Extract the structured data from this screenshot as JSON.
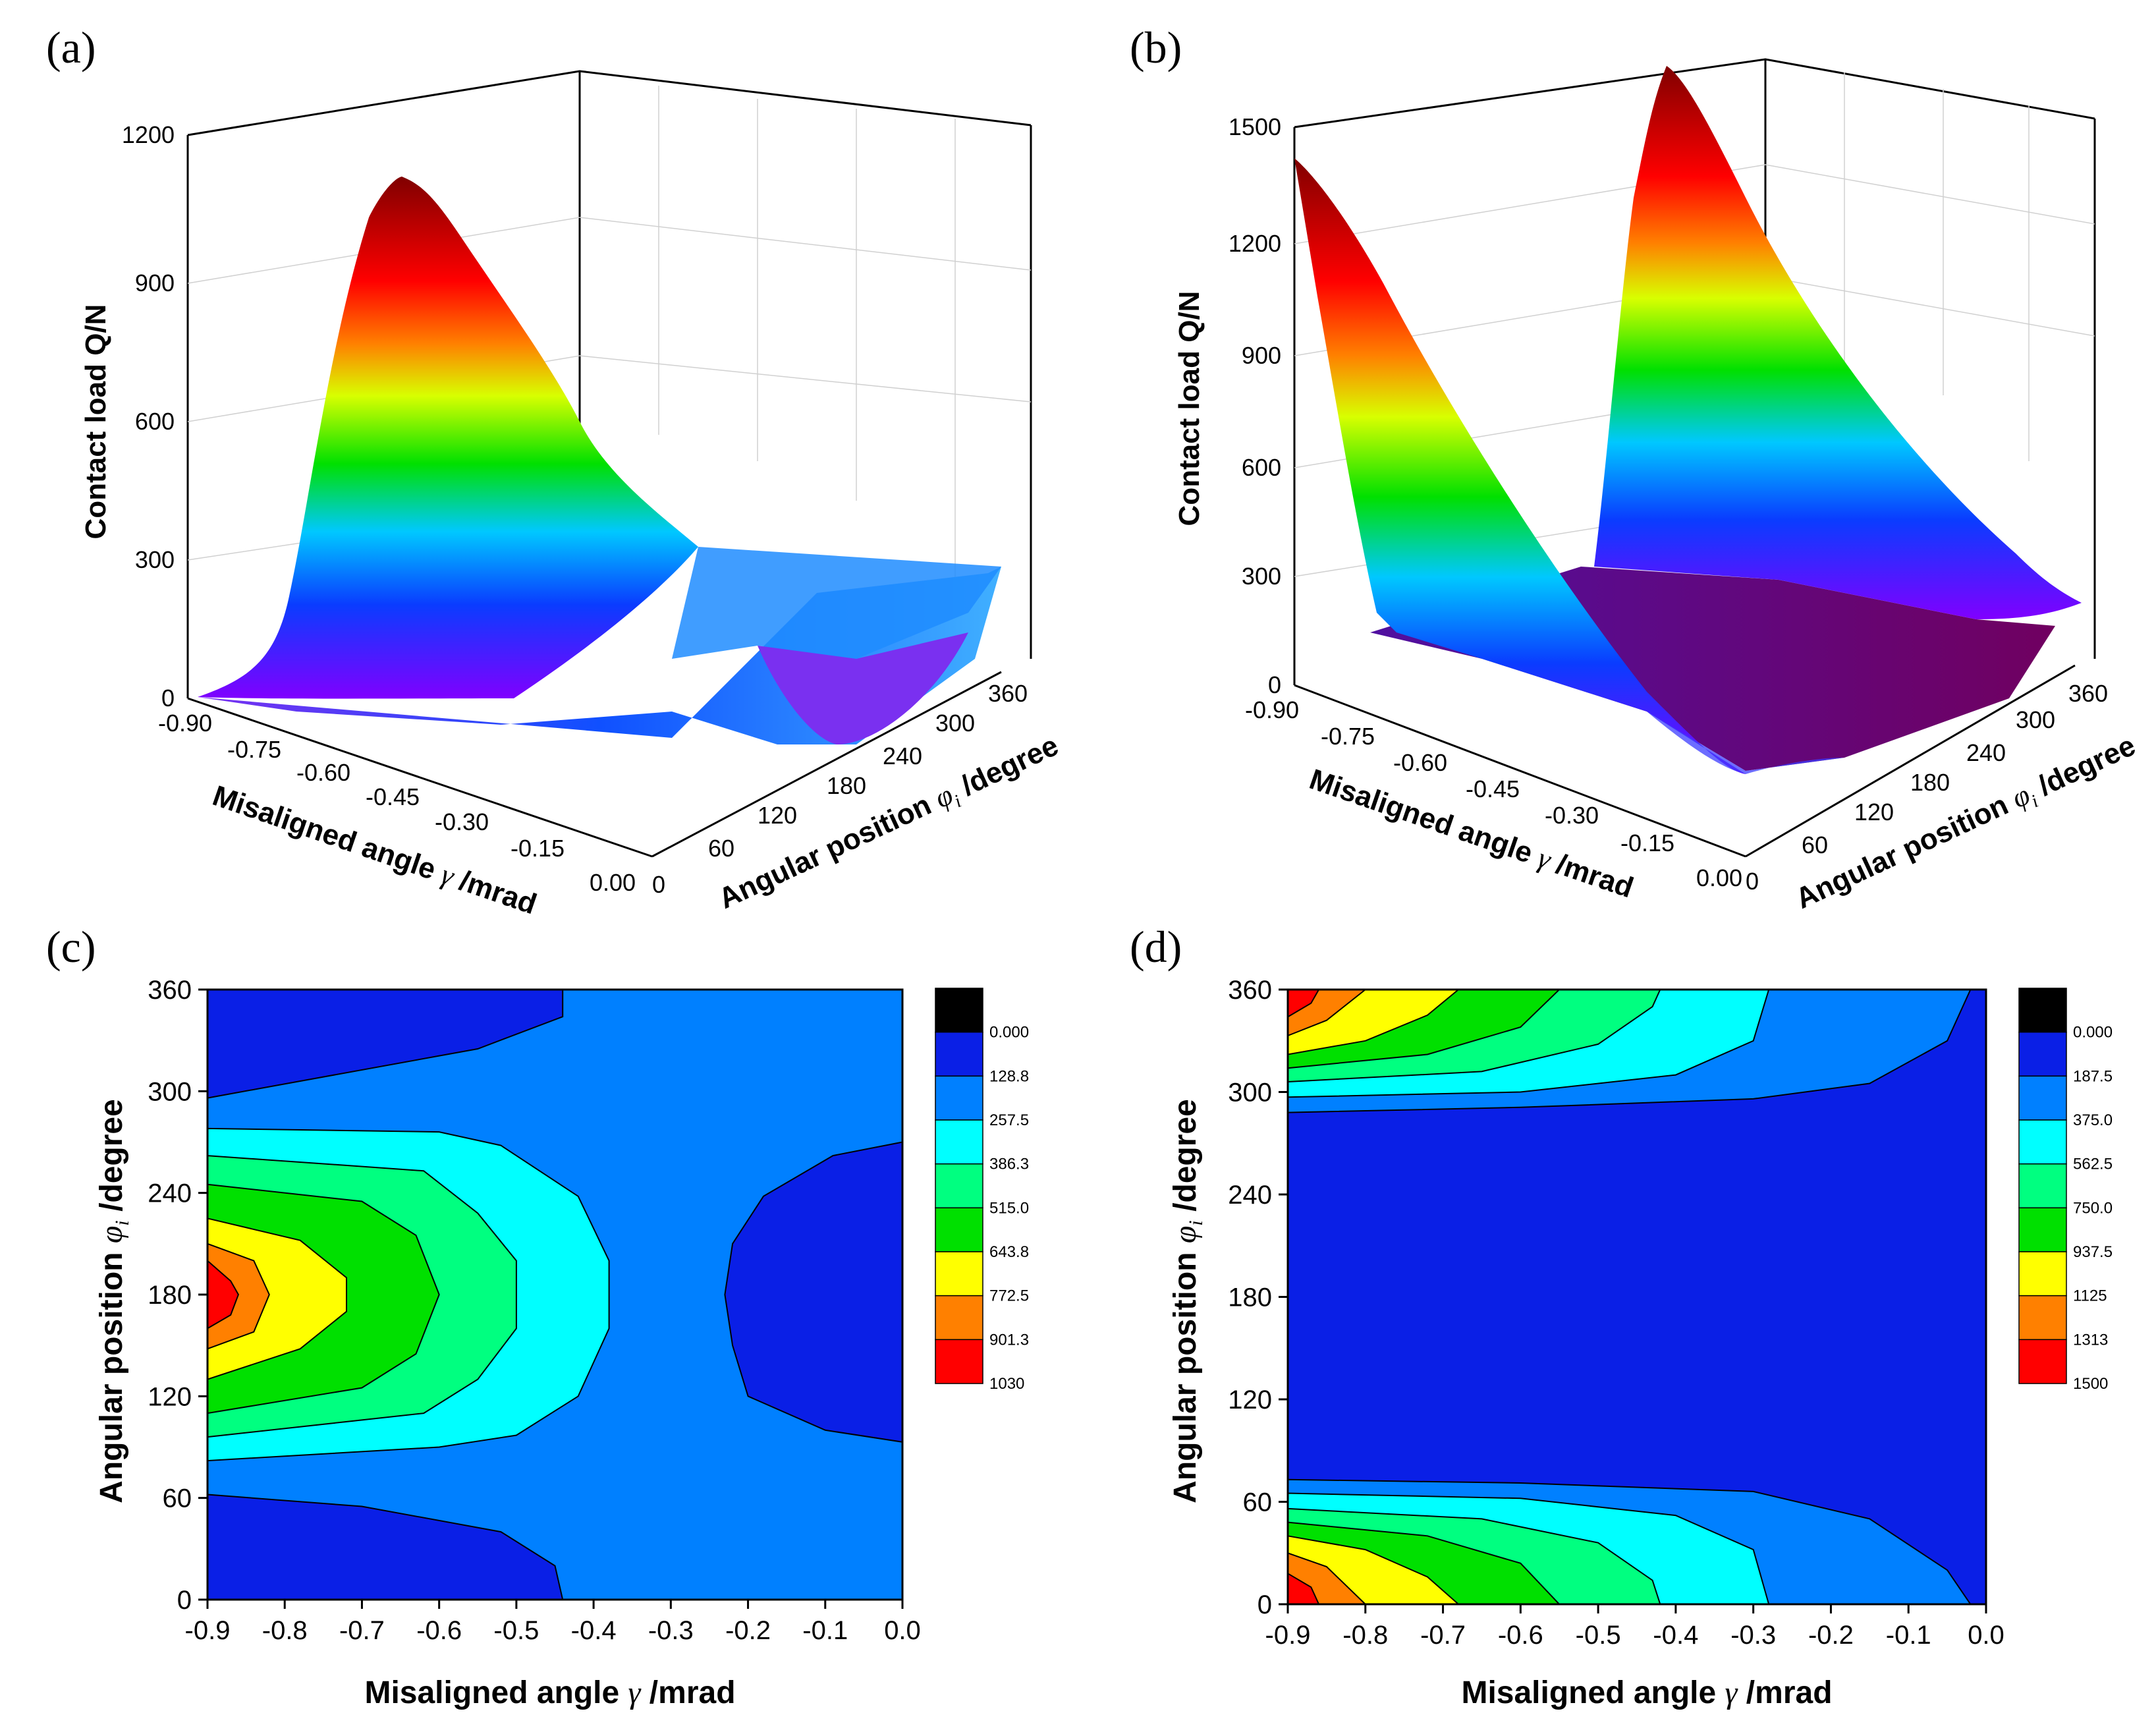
{
  "chart_data": [
    {
      "id": "a",
      "panel_label": "(a)",
      "type": "surface",
      "zlabel": "Contact load Q/N",
      "xlabel_prefix": "Misaligned angle ",
      "xlabel_sym": "γ",
      "xlabel_suffix": " /mrad",
      "ylabel_prefix": "Angular position ",
      "ylabel_sym": "φ",
      "ylabel_sub": "i",
      "ylabel_suffix": " /degree",
      "x_ticks": [
        "-0.90",
        "-0.75",
        "-0.60",
        "-0.45",
        "-0.30",
        "-0.15",
        "0.00"
      ],
      "y_ticks": [
        "0",
        "60",
        "120",
        "180",
        "240",
        "300",
        "360"
      ],
      "z_ticks": [
        "0",
        "300",
        "600",
        "900",
        "1200"
      ],
      "zlim": [
        0,
        1200
      ],
      "description": "load peaks near 1100 N at gamma = -0.90 mrad, phi = 180 degree and decreases toward gamma = 0"
    },
    {
      "id": "b",
      "panel_label": "(b)",
      "type": "surface",
      "zlabel": "Contact load Q/N",
      "xlabel_prefix": "Misaligned angle ",
      "xlabel_sym": "γ",
      "xlabel_suffix": " /mrad",
      "ylabel_prefix": "Angular position ",
      "ylabel_sym": "φ",
      "ylabel_sub": "i",
      "ylabel_suffix": " /degree",
      "x_ticks": [
        "-0.90",
        "-0.75",
        "-0.60",
        "-0.45",
        "-0.30",
        "-0.15",
        "0.00"
      ],
      "y_ticks": [
        "0",
        "60",
        "120",
        "180",
        "240",
        "300",
        "360"
      ],
      "z_ticks": [
        "0",
        "300",
        "600",
        "900",
        "1200",
        "1500"
      ],
      "zlim": [
        0,
        1500
      ],
      "description": "load peaks near 1500 N at gamma = -0.90 mrad for phi = 0 and phi = 360 degree"
    },
    {
      "id": "c",
      "panel_label": "(c)",
      "type": "contour",
      "xlabel_prefix": "Misaligned angle ",
      "xlabel_sym": "γ",
      "xlabel_suffix": " /mrad",
      "ylabel_prefix": "Angular position ",
      "ylabel_sym": "φ",
      "ylabel_sub": "i",
      "ylabel_suffix": " /degree",
      "xlim": [
        -0.9,
        0.0
      ],
      "ylim": [
        0,
        360
      ],
      "x_ticks": [
        "-0.9",
        "-0.8",
        "-0.7",
        "-0.6",
        "-0.5",
        "-0.4",
        "-0.3",
        "-0.2",
        "-0.1",
        "0.0"
      ],
      "y_ticks": [
        "0",
        "60",
        "120",
        "180",
        "240",
        "300",
        "360"
      ],
      "x_tick_values": [
        -0.9,
        -0.8,
        -0.7,
        -0.6,
        -0.5,
        -0.4,
        -0.3,
        -0.2,
        -0.1,
        0.0
      ],
      "y_tick_values": [
        0,
        60,
        120,
        180,
        240,
        300,
        360
      ],
      "levels": [
        "0.000",
        "128.8",
        "257.5",
        "386.3",
        "515.0",
        "643.8",
        "772.5",
        "901.3",
        "1030"
      ],
      "level_colors": [
        "#000000",
        "#0a1fe6",
        "#0080ff",
        "#00ffff",
        "#00ff80",
        "#00e000",
        "#ffff00",
        "#ff8000",
        "#ff0000"
      ],
      "base_color": "#0080ff",
      "regions": [
        {
          "level": 1,
          "color": "#0a1fe6",
          "points": [
            [
              -0.9,
              296
            ],
            [
              -0.55,
              325
            ],
            [
              -0.44,
              344
            ],
            [
              -0.44,
              360
            ],
            [
              -0.9,
              360
            ]
          ]
        },
        {
          "level": 1,
          "color": "#0a1fe6",
          "points": [
            [
              -0.9,
              0
            ],
            [
              -0.9,
              62
            ],
            [
              -0.7,
              55
            ],
            [
              -0.52,
              40
            ],
            [
              -0.45,
              20
            ],
            [
              -0.44,
              0
            ]
          ]
        },
        {
          "level": 1,
          "color": "#0a1fe6",
          "points": [
            [
              0,
              270
            ],
            [
              -0.09,
              262
            ],
            [
              -0.18,
              238
            ],
            [
              -0.22,
              210
            ],
            [
              -0.23,
              180
            ],
            [
              -0.22,
              150
            ],
            [
              -0.2,
              120
            ],
            [
              -0.1,
              100
            ],
            [
              0,
              93
            ]
          ]
        },
        {
          "level": 3,
          "color": "#00ffff",
          "points": [
            [
              -0.9,
              278
            ],
            [
              -0.6,
              276
            ],
            [
              -0.52,
              268
            ],
            [
              -0.42,
              238
            ],
            [
              -0.38,
              200
            ],
            [
              -0.38,
              160
            ],
            [
              -0.42,
              120
            ],
            [
              -0.5,
              97
            ],
            [
              -0.6,
              90
            ],
            [
              -0.9,
              82
            ]
          ]
        },
        {
          "level": 4,
          "color": "#00ff80",
          "points": [
            [
              -0.9,
              262
            ],
            [
              -0.62,
              253
            ],
            [
              -0.55,
              228
            ],
            [
              -0.5,
              200
            ],
            [
              -0.5,
              160
            ],
            [
              -0.55,
              130
            ],
            [
              -0.62,
              110
            ],
            [
              -0.9,
              96
            ]
          ]
        },
        {
          "level": 5,
          "color": "#00e000",
          "points": [
            [
              -0.9,
              245
            ],
            [
              -0.7,
              235
            ],
            [
              -0.63,
              215
            ],
            [
              -0.6,
              180
            ],
            [
              -0.63,
              145
            ],
            [
              -0.7,
              125
            ],
            [
              -0.9,
              110
            ]
          ]
        },
        {
          "level": 6,
          "color": "#ffff00",
          "points": [
            [
              -0.9,
              225
            ],
            [
              -0.78,
              212
            ],
            [
              -0.72,
              190
            ],
            [
              -0.72,
              170
            ],
            [
              -0.78,
              148
            ],
            [
              -0.9,
              130
            ]
          ]
        },
        {
          "level": 7,
          "color": "#ff8000",
          "points": [
            [
              -0.9,
              210
            ],
            [
              -0.84,
              200
            ],
            [
              -0.82,
              180
            ],
            [
              -0.84,
              158
            ],
            [
              -0.9,
              148
            ]
          ]
        },
        {
          "level": 8,
          "color": "#ff0000",
          "points": [
            [
              -0.9,
              200
            ],
            [
              -0.87,
              188
            ],
            [
              -0.86,
              180
            ],
            [
              -0.87,
              168
            ],
            [
              -0.9,
              160
            ]
          ]
        }
      ]
    },
    {
      "id": "d",
      "panel_label": "(d)",
      "type": "contour",
      "xlabel_prefix": "Misaligned angle ",
      "xlabel_sym": "γ",
      "xlabel_suffix": " /mrad",
      "ylabel_prefix": "Angular position ",
      "ylabel_sym": "φ",
      "ylabel_sub": "i",
      "ylabel_suffix": " /degree",
      "xlim": [
        -0.9,
        0.0
      ],
      "ylim": [
        0,
        360
      ],
      "x_ticks": [
        "-0.9",
        "-0.8",
        "-0.7",
        "-0.6",
        "-0.5",
        "-0.4",
        "-0.3",
        "-0.2",
        "-0.1",
        "0.0"
      ],
      "y_ticks": [
        "0",
        "60",
        "120",
        "180",
        "240",
        "300",
        "360"
      ],
      "x_tick_values": [
        -0.9,
        -0.8,
        -0.7,
        -0.6,
        -0.5,
        -0.4,
        -0.3,
        -0.2,
        -0.1,
        0.0
      ],
      "y_tick_values": [
        0,
        60,
        120,
        180,
        240,
        300,
        360
      ],
      "levels": [
        "0.000",
        "187.5",
        "375.0",
        "562.5",
        "750.0",
        "937.5",
        "1125",
        "1313",
        "1500"
      ],
      "level_colors": [
        "#000000",
        "#0a1fe6",
        "#0080ff",
        "#00ffff",
        "#00ff80",
        "#00e000",
        "#ffff00",
        "#ff8000",
        "#ff0000"
      ],
      "base_color": "#0a1fe6",
      "regions": [
        {
          "level": 2,
          "color": "#0080ff",
          "points": [
            [
              -0.9,
              288
            ],
            [
              -0.6,
              291
            ],
            [
              -0.3,
              296
            ],
            [
              -0.15,
              305
            ],
            [
              -0.05,
              330
            ],
            [
              -0.02,
              360
            ],
            [
              -0.9,
              360
            ]
          ]
        },
        {
          "level": 3,
          "color": "#00ffff",
          "points": [
            [
              -0.9,
              297
            ],
            [
              -0.6,
              300
            ],
            [
              -0.4,
              310
            ],
            [
              -0.3,
              330
            ],
            [
              -0.28,
              360
            ],
            [
              -0.9,
              360
            ]
          ]
        },
        {
          "level": 4,
          "color": "#00ff80",
          "points": [
            [
              -0.9,
              306
            ],
            [
              -0.65,
              312
            ],
            [
              -0.5,
              328
            ],
            [
              -0.43,
              350
            ],
            [
              -0.42,
              360
            ],
            [
              -0.9,
              360
            ]
          ]
        },
        {
          "level": 5,
          "color": "#00e000",
          "points": [
            [
              -0.9,
              314
            ],
            [
              -0.72,
              322
            ],
            [
              -0.6,
              338
            ],
            [
              -0.55,
              360
            ],
            [
              -0.9,
              360
            ]
          ]
        },
        {
          "level": 6,
          "color": "#ffff00",
          "points": [
            [
              -0.9,
              322
            ],
            [
              -0.8,
              330
            ],
            [
              -0.72,
              345
            ],
            [
              -0.68,
              360
            ],
            [
              -0.9,
              360
            ]
          ]
        },
        {
          "level": 7,
          "color": "#ff8000",
          "points": [
            [
              -0.9,
              333
            ],
            [
              -0.85,
              342
            ],
            [
              -0.8,
              360
            ],
            [
              -0.9,
              360
            ]
          ]
        },
        {
          "level": 8,
          "color": "#ff0000",
          "points": [
            [
              -0.9,
              344
            ],
            [
              -0.87,
              352
            ],
            [
              -0.86,
              360
            ],
            [
              -0.9,
              360
            ]
          ]
        },
        {
          "level": 2,
          "color": "#0080ff",
          "points": [
            [
              -0.9,
              73
            ],
            [
              -0.6,
              71
            ],
            [
              -0.3,
              66
            ],
            [
              -0.15,
              50
            ],
            [
              -0.05,
              20
            ],
            [
              -0.02,
              0
            ],
            [
              -0.9,
              0
            ]
          ]
        },
        {
          "level": 3,
          "color": "#00ffff",
          "points": [
            [
              -0.9,
              65
            ],
            [
              -0.6,
              62
            ],
            [
              -0.4,
              52
            ],
            [
              -0.3,
              32
            ],
            [
              -0.28,
              0
            ],
            [
              -0.9,
              0
            ]
          ]
        },
        {
          "level": 4,
          "color": "#00ff80",
          "points": [
            [
              -0.9,
              56
            ],
            [
              -0.65,
              50
            ],
            [
              -0.5,
              36
            ],
            [
              -0.43,
              14
            ],
            [
              -0.42,
              0
            ],
            [
              -0.9,
              0
            ]
          ]
        },
        {
          "level": 5,
          "color": "#00e000",
          "points": [
            [
              -0.9,
              48
            ],
            [
              -0.72,
              40
            ],
            [
              -0.6,
              24
            ],
            [
              -0.55,
              0
            ],
            [
              -0.9,
              0
            ]
          ]
        },
        {
          "level": 6,
          "color": "#ffff00",
          "points": [
            [
              -0.9,
              40
            ],
            [
              -0.8,
              32
            ],
            [
              -0.72,
              16
            ],
            [
              -0.68,
              0
            ],
            [
              -0.9,
              0
            ]
          ]
        },
        {
          "level": 7,
          "color": "#ff8000",
          "points": [
            [
              -0.9,
              30
            ],
            [
              -0.85,
              22
            ],
            [
              -0.8,
              0
            ],
            [
              -0.9,
              0
            ]
          ]
        },
        {
          "level": 8,
          "color": "#ff0000",
          "points": [
            [
              -0.9,
              18
            ],
            [
              -0.87,
              10
            ],
            [
              -0.86,
              0
            ],
            [
              -0.9,
              0
            ]
          ]
        }
      ]
    }
  ]
}
